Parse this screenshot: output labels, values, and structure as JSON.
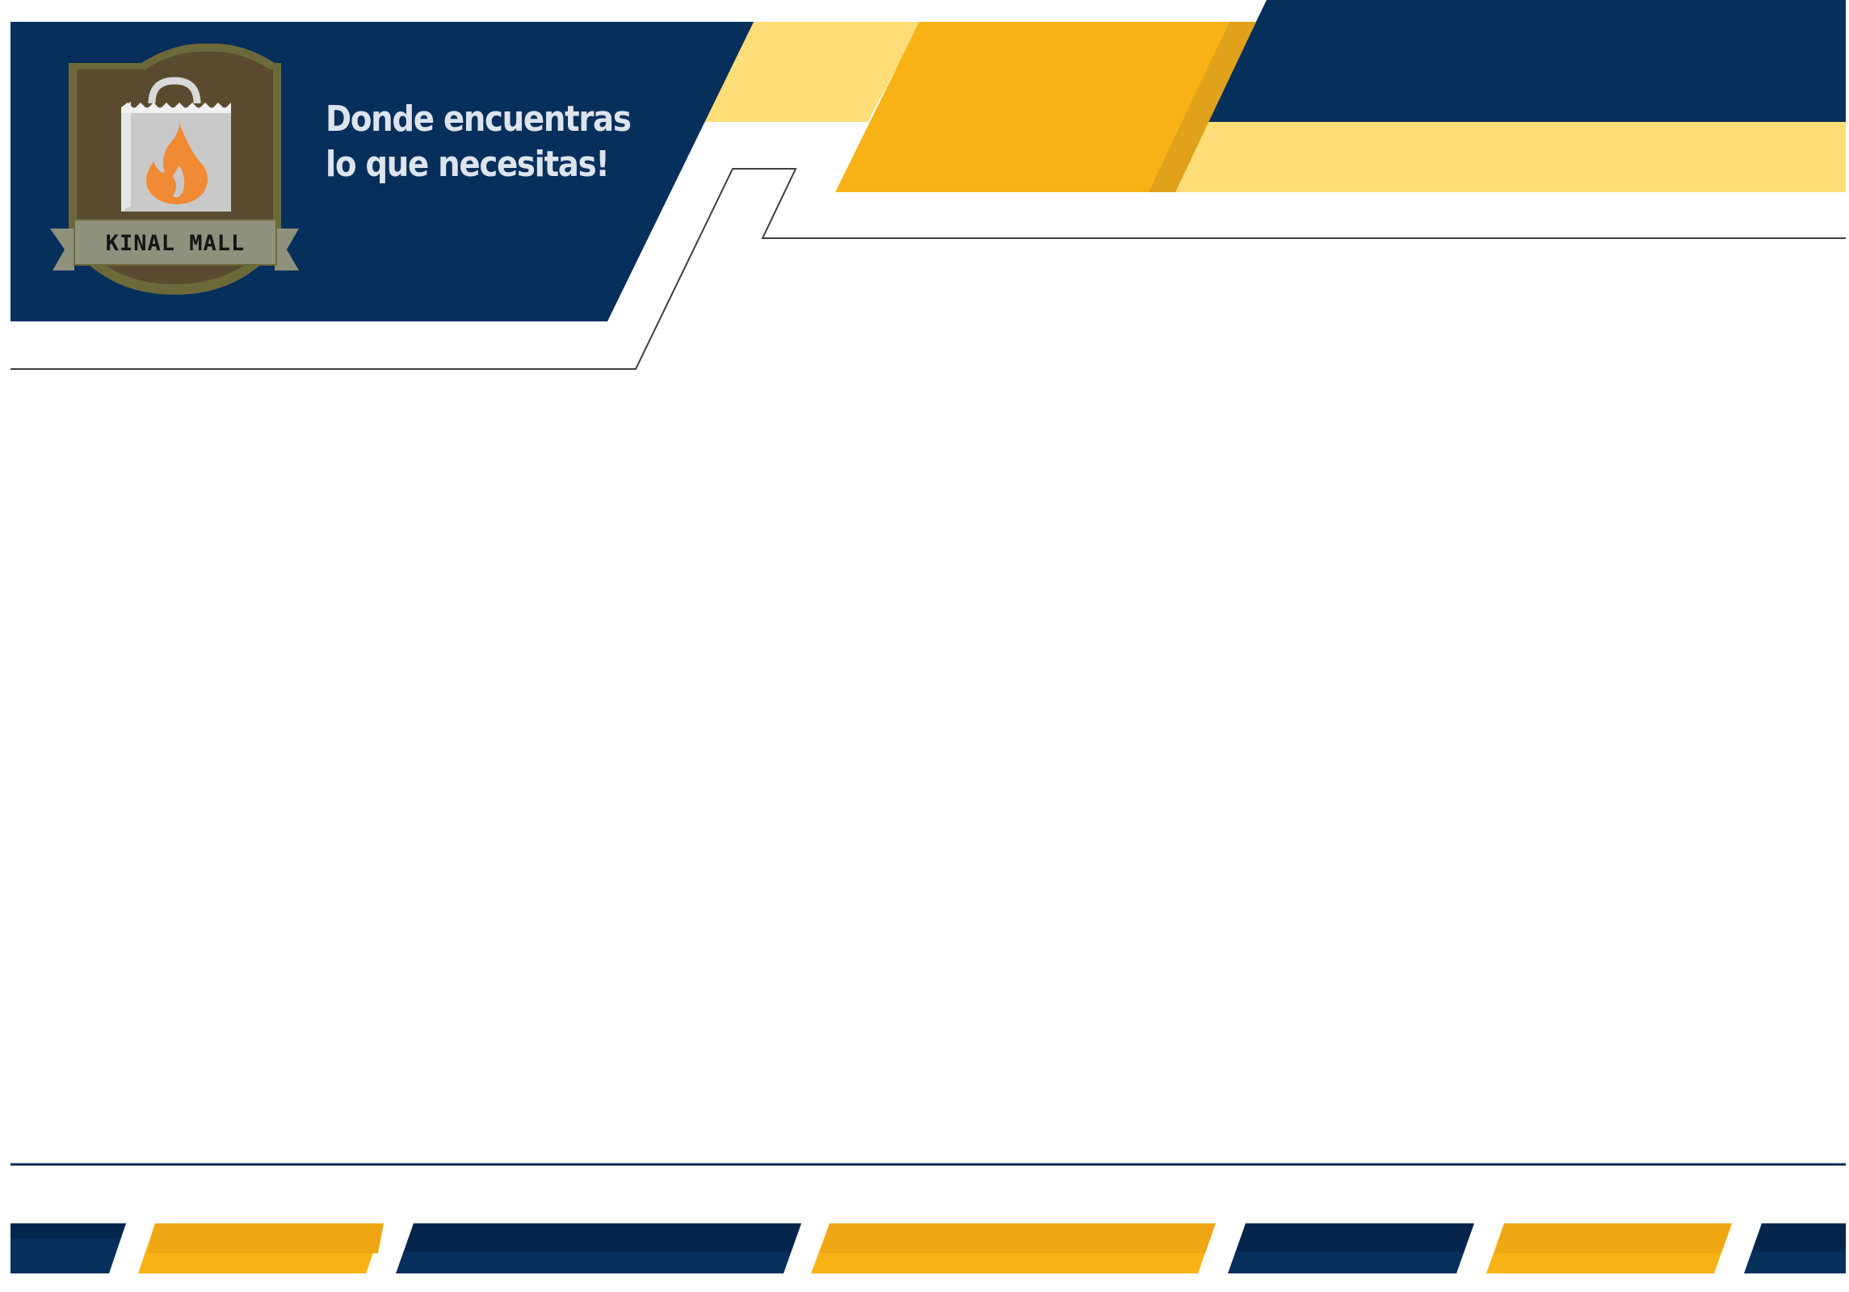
{
  "header": {
    "tagline_line1": "Donde encuentras",
    "tagline_line2": "lo que necesitas!"
  },
  "logo": {
    "brand_name": "KINAL MALL",
    "icon": "shopping-bag-flame-icon"
  },
  "colors": {
    "navy": "#072f5c",
    "navy_dark": "#04264d",
    "gold": "#f9b215",
    "gold_dark": "#e0a11b",
    "pale_yellow": "#ffdd78",
    "logo_brown": "#5a4b30",
    "logo_frame": "#6c6a3a",
    "logo_banner": "#8f917d",
    "flame_orange": "#f18a34",
    "bag_grey": "#c9c9c9",
    "line_grey": "#3f3f3f"
  }
}
